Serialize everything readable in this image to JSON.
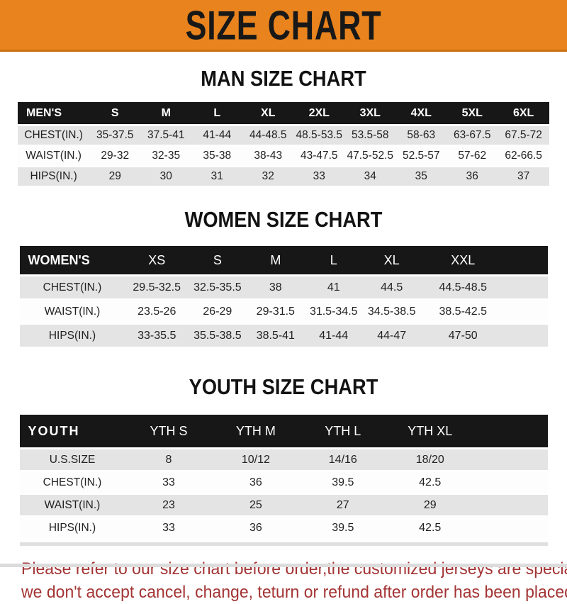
{
  "banner": {
    "title": "SIZE CHART",
    "bg_color": "#E8831E"
  },
  "sections": [
    {
      "title": "MAN SIZE CHART",
      "table": {
        "header_label": "MEN'S",
        "columns": [
          "S",
          "M",
          "L",
          "XL",
          "2XL",
          "3XL",
          "4XL",
          "5XL",
          "6XL"
        ],
        "rows": [
          {
            "label": "CHEST(IN.)",
            "values": [
              "35-37.5",
              "37.5-41",
              "41-44",
              "44-48.5",
              "48.5-53.5",
              "53.5-58",
              "58-63",
              "63-67.5",
              "67.5-72"
            ]
          },
          {
            "label": "WAIST(IN.)",
            "values": [
              "29-32",
              "32-35",
              "35-38",
              "38-43",
              "43-47.5",
              "47.5-52.5",
              "52.5-57",
              "57-62",
              "62-66.5"
            ]
          },
          {
            "label": "HIPS(IN.)",
            "values": [
              "29",
              "30",
              "31",
              "32",
              "33",
              "34",
              "35",
              "36",
              "37"
            ]
          }
        ]
      }
    },
    {
      "title": "WOMEN SIZE CHART",
      "table": {
        "header_label": "WOMEN'S",
        "columns": [
          "XS",
          "S",
          "M",
          "L",
          "XL",
          "XXL"
        ],
        "rows": [
          {
            "label": "CHEST(IN.)",
            "values": [
              "29.5-32.5",
              "32.5-35.5",
              "38",
              "41",
              "44.5",
              "44.5-48.5"
            ]
          },
          {
            "label": "WAIST(IN.)",
            "values": [
              "23.5-26",
              "26-29",
              "29-31.5",
              "31.5-34.5",
              "34.5-38.5",
              "38.5-42.5"
            ]
          },
          {
            "label": "HIPS(IN.)",
            "values": [
              "33-35.5",
              "35.5-38.5",
              "38.5-41",
              "41-44",
              "44-47",
              "47-50"
            ]
          }
        ]
      }
    },
    {
      "title": "YOUTH SIZE CHART",
      "table": {
        "header_label": "YOUTH",
        "columns": [
          "YTH S",
          "YTH M",
          "YTH L",
          "YTH XL"
        ],
        "rows": [
          {
            "label": "U.S.SIZE",
            "values": [
              "8",
              "10/12",
              "14/16",
              "18/20"
            ]
          },
          {
            "label": "CHEST(IN.)",
            "values": [
              "33",
              "36",
              "39.5",
              "42.5"
            ]
          },
          {
            "label": "WAIST(IN.)",
            "values": [
              "23",
              "25",
              "27",
              "29"
            ]
          },
          {
            "label": "HIPS(IN.)",
            "values": [
              "33",
              "36",
              "39.5",
              "42.5"
            ]
          }
        ]
      }
    }
  ],
  "footer_note": {
    "line1": "Please refer to our size chart before order,the customized jerseys are special products,",
    "line2": "we don't accept cancel, change, teturn or refund after order has been placed!",
    "color": "#A43434"
  }
}
